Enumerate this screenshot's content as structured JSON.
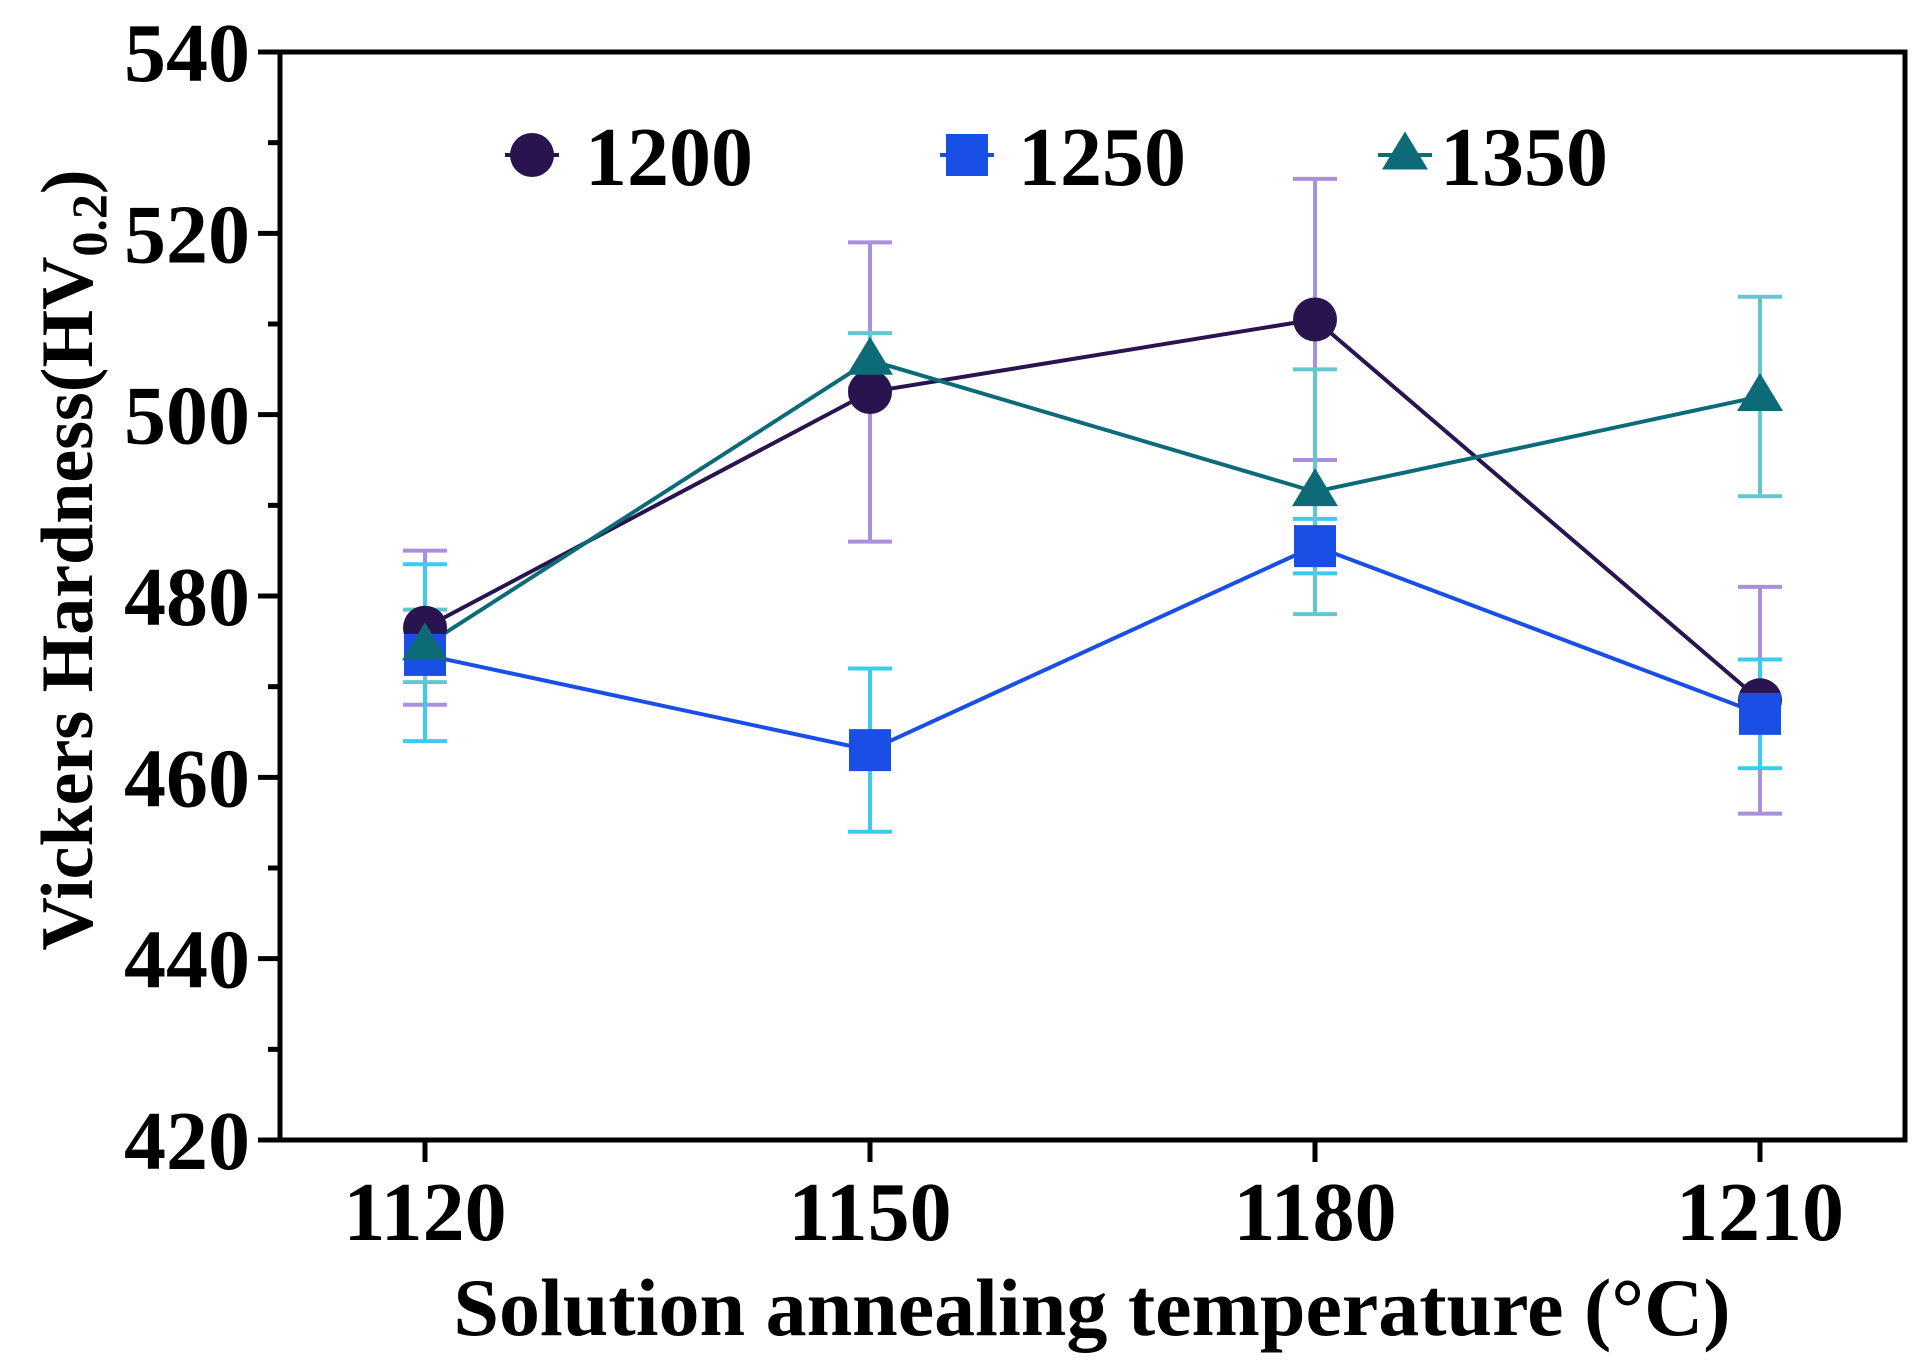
{
  "chart_data": {
    "type": "line",
    "title": "",
    "xlabel": "Solution annealing temperature (°C)",
    "ylabel": {
      "main": "Vickers Hardness(HV",
      "sub": "0.2",
      "close": ")"
    },
    "x": [
      1120,
      1150,
      1180,
      1210
    ],
    "x_tick_labels": [
      "1120",
      "1150",
      "1180",
      "1210"
    ],
    "ylim": [
      420,
      540
    ],
    "y_ticks": [
      420,
      440,
      460,
      480,
      500,
      520,
      540
    ],
    "y_tick_labels": [
      "420",
      "440",
      "460",
      "480",
      "500",
      "520",
      "540"
    ],
    "grid": false,
    "legend_position": "top",
    "series": [
      {
        "name": "1200",
        "marker": "circle",
        "color": "#2a1450",
        "error_color": "#a98fdc",
        "values": [
          476.5,
          502.5,
          510.5,
          468.5
        ],
        "errors_low": [
          8.5,
          16.5,
          15.5,
          12.5
        ],
        "errors_high": [
          8.5,
          16.5,
          15.5,
          12.5
        ]
      },
      {
        "name": "1250",
        "marker": "square",
        "color": "#1a4fe6",
        "error_color": "#3ccbef",
        "values": [
          473.5,
          463,
          485.5,
          467
        ],
        "errors_low": [
          9.5,
          9,
          3,
          6
        ],
        "errors_high": [
          10,
          9,
          3,
          6
        ]
      },
      {
        "name": "1350",
        "marker": "triangle",
        "color": "#0d6b78",
        "error_color": "#63c7d0",
        "values": [
          474.5,
          506,
          491.5,
          502
        ],
        "errors_low": [
          4,
          3,
          13.5,
          11
        ],
        "errors_high": [
          4,
          3,
          13.5,
          11
        ]
      }
    ]
  }
}
